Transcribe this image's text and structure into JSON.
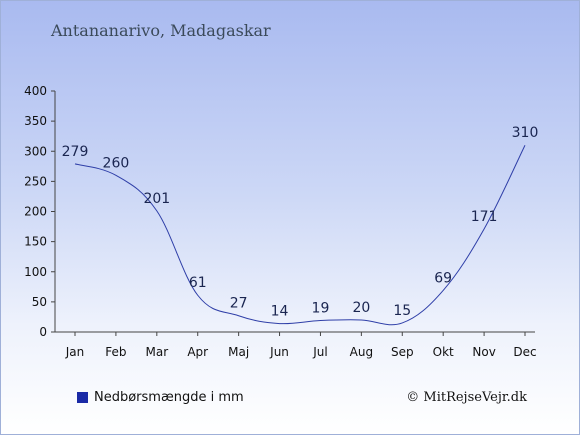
{
  "title": "Antananarivo, Madagaskar",
  "legend_label": "Nedbørsmængde i mm",
  "credit": "© MitRejseVejr.dk",
  "colors": {
    "line": "#2f3fa8",
    "legend_swatch": "#1a2aa6",
    "axis": "#444444"
  },
  "chart_data": {
    "type": "line",
    "categories": [
      "Jan",
      "Feb",
      "Mar",
      "Apr",
      "Maj",
      "Jun",
      "Jul",
      "Aug",
      "Sep",
      "Okt",
      "Nov",
      "Dec"
    ],
    "series": [
      {
        "name": "Nedbørsmængde i mm",
        "values": [
          279,
          260,
          201,
          61,
          27,
          14,
          19,
          20,
          15,
          69,
          171,
          310
        ]
      }
    ],
    "ylim": [
      0,
      400
    ],
    "yticks": [
      0,
      50,
      100,
      150,
      200,
      250,
      300,
      350,
      400
    ],
    "grid": false,
    "data_labels": true
  }
}
